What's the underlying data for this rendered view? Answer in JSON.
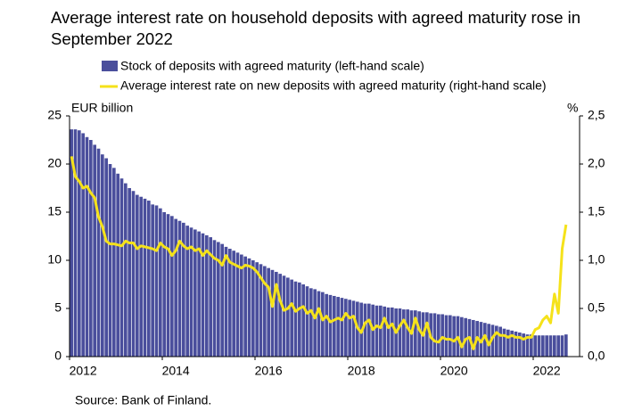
{
  "chart_data": {
    "type": "bar-line",
    "title": "Average interest rate on household deposits with agreed maturity rose in September 2022",
    "y_label": "EUR billion",
    "y2_label": "%",
    "source": "Source: Bank of Finland.",
    "categories": [
      "2012",
      null,
      null,
      null,
      null,
      null,
      null,
      null,
      null,
      null,
      null,
      null,
      null,
      null,
      null,
      null,
      null,
      null,
      null,
      null,
      null,
      null,
      null,
      null,
      "2014",
      null,
      null,
      null,
      null,
      null,
      null,
      null,
      null,
      null,
      null,
      null,
      null,
      null,
      null,
      null,
      null,
      null,
      null,
      null,
      null,
      null,
      null,
      null,
      "2016",
      null,
      null,
      null,
      null,
      null,
      null,
      null,
      null,
      null,
      null,
      null,
      null,
      null,
      null,
      null,
      null,
      null,
      null,
      null,
      null,
      null,
      null,
      null,
      "2018",
      null,
      null,
      null,
      null,
      null,
      null,
      null,
      null,
      null,
      null,
      null,
      null,
      null,
      null,
      null,
      null,
      null,
      null,
      null,
      null,
      null,
      null,
      null,
      "2020",
      null,
      null,
      null,
      null,
      null,
      null,
      null,
      null,
      null,
      null,
      null,
      null,
      null,
      null,
      null,
      null,
      null,
      null,
      null,
      null,
      null,
      null,
      null,
      "2022",
      null,
      null,
      null,
      null,
      null,
      null,
      null,
      null
    ],
    "series": [
      {
        "name": "Stock of deposits with agreed maturity (left-hand scale)",
        "type": "bar",
        "color": "#4a4e9c",
        "values": [
          23.6,
          23.6,
          23.5,
          23.2,
          22.8,
          22.5,
          22.0,
          21.6,
          21.0,
          20.6,
          20.0,
          19.6,
          19.0,
          18.5,
          18.0,
          17.5,
          17.2,
          16.8,
          16.6,
          16.4,
          16.2,
          15.8,
          15.7,
          15.4,
          15.0,
          14.8,
          14.6,
          14.3,
          14.1,
          13.9,
          13.6,
          13.4,
          13.2,
          13.0,
          12.8,
          12.6,
          12.4,
          12.1,
          11.9,
          11.7,
          11.4,
          11.2,
          11.0,
          10.8,
          10.6,
          10.4,
          10.2,
          10.0,
          9.8,
          9.6,
          9.4,
          9.2,
          9.0,
          8.8,
          8.6,
          8.4,
          8.2,
          8.0,
          7.8,
          7.7,
          7.5,
          7.3,
          7.1,
          7.0,
          6.8,
          6.7,
          6.5,
          6.4,
          6.3,
          6.2,
          6.1,
          6.0,
          5.9,
          5.8,
          5.7,
          5.6,
          5.5,
          5.5,
          5.4,
          5.3,
          5.3,
          5.2,
          5.1,
          5.1,
          5.0,
          5.0,
          4.9,
          4.9,
          4.8,
          4.8,
          4.7,
          4.6,
          4.6,
          4.5,
          4.5,
          4.4,
          4.4,
          4.3,
          4.3,
          4.2,
          4.2,
          4.1,
          4.0,
          3.9,
          3.8,
          3.7,
          3.6,
          3.5,
          3.4,
          3.3,
          3.2,
          3.1,
          2.9,
          2.8,
          2.7,
          2.6,
          2.5,
          2.4,
          2.3,
          2.3,
          2.2,
          2.2,
          2.2,
          2.2,
          2.2,
          2.2,
          2.2,
          2.2,
          2.3
        ]
      },
      {
        "name": "Average interest rate on new deposits with agreed maturity (right-hand scale)",
        "type": "line",
        "axis": "y2",
        "color": "#f5e21a",
        "values": [
          2.08,
          1.87,
          1.82,
          1.75,
          1.77,
          1.7,
          1.65,
          1.45,
          1.35,
          1.2,
          1.17,
          1.17,
          1.16,
          1.15,
          1.2,
          1.18,
          1.18,
          1.12,
          1.15,
          1.14,
          1.13,
          1.12,
          1.1,
          1.18,
          1.14,
          1.12,
          1.05,
          1.1,
          1.2,
          1.15,
          1.12,
          1.14,
          1.1,
          1.12,
          1.05,
          1.1,
          1.06,
          1.02,
          1.0,
          0.95,
          1.05,
          0.98,
          0.96,
          0.94,
          0.92,
          0.95,
          0.94,
          0.92,
          0.88,
          0.82,
          0.76,
          0.72,
          0.52,
          0.75,
          0.58,
          0.48,
          0.5,
          0.55,
          0.47,
          0.5,
          0.52,
          0.45,
          0.48,
          0.4,
          0.5,
          0.38,
          0.42,
          0.36,
          0.38,
          0.4,
          0.38,
          0.45,
          0.4,
          0.42,
          0.3,
          0.25,
          0.35,
          0.38,
          0.28,
          0.32,
          0.3,
          0.4,
          0.3,
          0.34,
          0.25,
          0.32,
          0.38,
          0.3,
          0.24,
          0.4,
          0.28,
          0.22,
          0.35,
          0.2,
          0.16,
          0.15,
          0.2,
          0.18,
          0.18,
          0.16,
          0.2,
          0.1,
          0.18,
          0.2,
          0.08,
          0.2,
          0.15,
          0.22,
          0.12,
          0.2,
          0.25,
          0.22,
          0.22,
          0.2,
          0.22,
          0.2,
          0.2,
          0.18,
          0.2,
          0.2,
          0.28,
          0.3,
          0.38,
          0.42,
          0.35,
          0.65,
          0.45,
          1.12,
          1.37
        ]
      }
    ],
    "ylim": [
      0,
      25
    ],
    "yticks": [
      0,
      5,
      10,
      15,
      20,
      25
    ],
    "y2lim": [
      0,
      2.5
    ],
    "y2ticks": [
      {
        "value": 0,
        "label": "0,0"
      },
      {
        "value": 0.5,
        "label": "0,5"
      },
      {
        "value": 1,
        "label": "1,0"
      },
      {
        "value": 1.5,
        "label": "1,5"
      },
      {
        "value": 2,
        "label": "2,0"
      },
      {
        "value": 2.5,
        "label": "2,5"
      }
    ],
    "grid": false
  }
}
